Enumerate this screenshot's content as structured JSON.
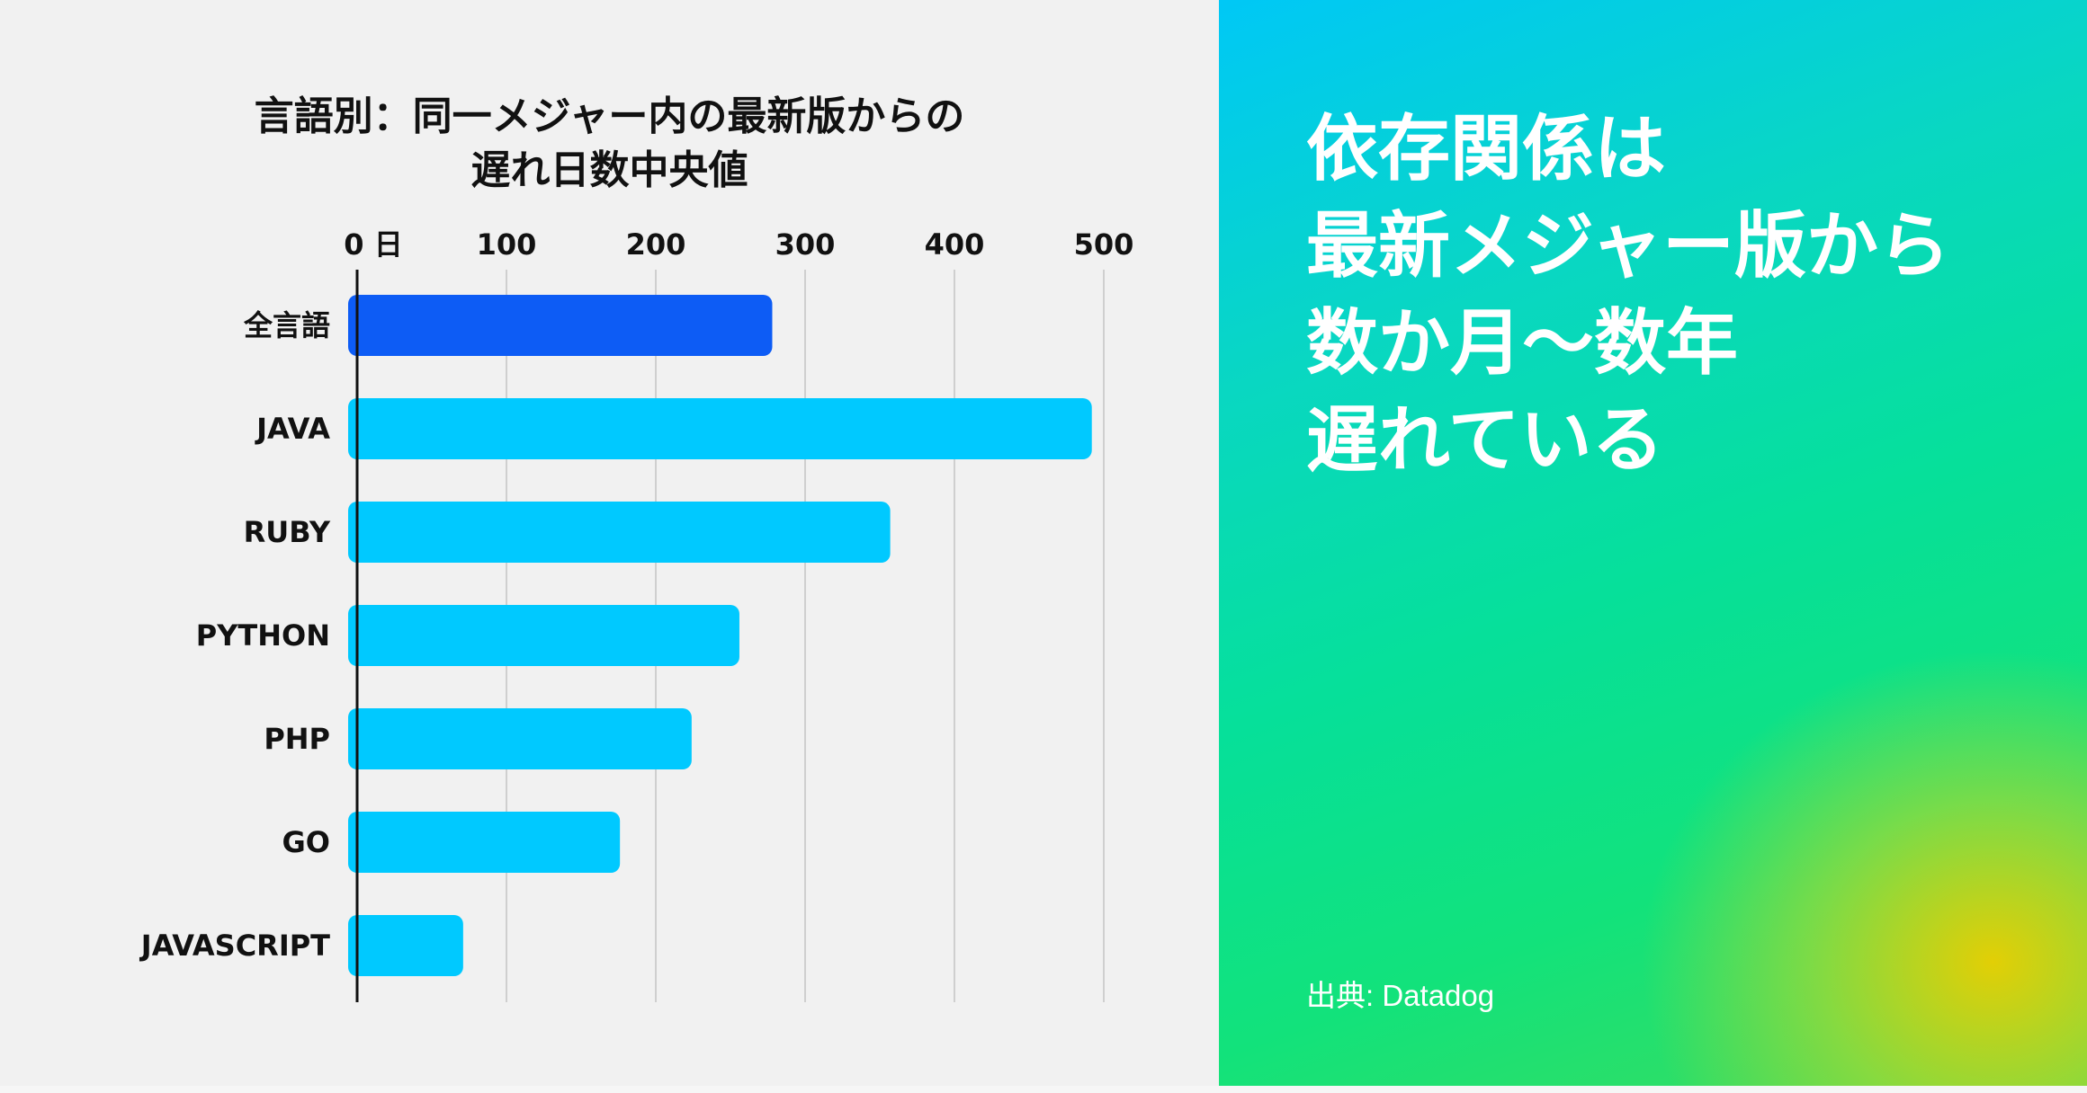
{
  "headline": {
    "lines": [
      "依存関係は",
      "最新メジャー版から",
      "数か月〜数年",
      "遅れている"
    ]
  },
  "source": "出典: Datadog",
  "colors": {
    "highlight_bar": "#0d5cf5",
    "bar": "#00c9ff",
    "gradient_top": "#00c8f6",
    "gradient_mid": "#06e09a",
    "gradient_corner": "#ecce00"
  },
  "chart_data": {
    "type": "bar",
    "orientation": "horizontal",
    "title": [
      "言語別：同一メジャー内の最新版からの",
      "遅れ日数中央値"
    ],
    "categories": [
      "全言語",
      "JAVA",
      "RUBY",
      "PYTHON",
      "PHP",
      "GO",
      "JAVASCRIPT"
    ],
    "values": [
      278,
      492,
      357,
      256,
      224,
      176,
      71
    ],
    "highlight": [
      "全言語"
    ],
    "xticks": [
      "0 日",
      "100",
      "200",
      "300",
      "400",
      "500"
    ],
    "xtick_values": [
      0,
      100,
      200,
      300,
      400,
      500
    ],
    "xlim": [
      0,
      520
    ],
    "grid": true
  }
}
